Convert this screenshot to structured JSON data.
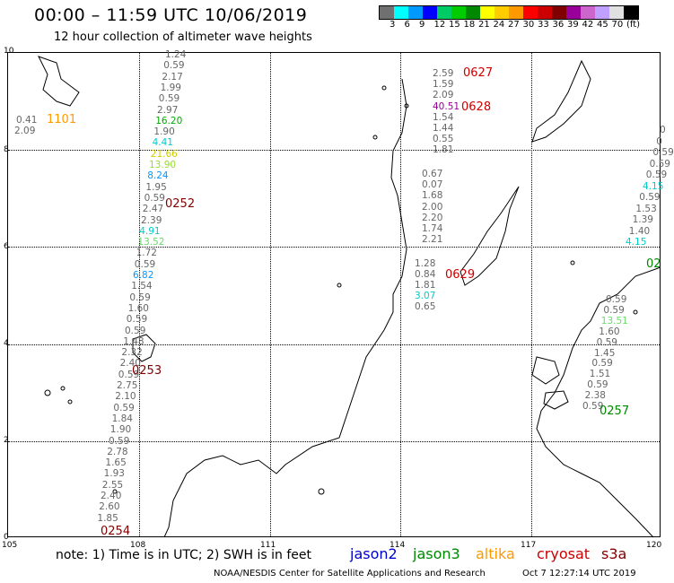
{
  "title": "00:00 – 11:59 UTC 10/06/2019",
  "subtitle": "12 hour collection of altimeter wave heights",
  "color_scale": {
    "colors": [
      "#707070",
      "#00ffff",
      "#0099ff",
      "#0000ff",
      "#00cc66",
      "#00cc00",
      "#008800",
      "#ffff00",
      "#ffcc00",
      "#ff9900",
      "#ff0000",
      "#cc0000",
      "#800000",
      "#990099",
      "#cc66cc",
      "#c0a0ff",
      "#e0e0e0",
      "#000000"
    ],
    "labels": [
      "3",
      "6",
      "9",
      "12",
      "15",
      "18",
      "21",
      "24",
      "27",
      "30",
      "33",
      "36",
      "39",
      "42",
      "45",
      "70"
    ],
    "unit": "(ft)"
  },
  "axes": {
    "y_ticks": [
      "10",
      "8",
      "6",
      "4",
      "2",
      "0"
    ],
    "x_ticks": [
      "105",
      "108",
      "111",
      "114",
      "117",
      "120"
    ]
  },
  "notes": {
    "text": "note: 1) Time is in UTC; 2) SWH is in feet",
    "legend": [
      {
        "name": "jason2",
        "color": "#0000cc"
      },
      {
        "name": "jason3",
        "color": "#008800"
      },
      {
        "name": "altika",
        "color": "#ff9900"
      },
      {
        "name": "cryosat",
        "color": "#cc0000"
      },
      {
        "name": "s3a",
        "color": "#800000"
      }
    ],
    "credit": "NOAA/NESDIS Center for Satellite Applications and Research",
    "generated": "Oct  7 12:27:14 UTC 2019"
  },
  "passes": [
    {
      "time": "1101",
      "color": "#ff9900"
    },
    {
      "time": "0252",
      "color": "#800000"
    },
    {
      "time": "0253",
      "color": "#800000"
    },
    {
      "time": "0254",
      "color": "#800000"
    },
    {
      "time": "0627",
      "color": "#cc0000"
    },
    {
      "time": "0628",
      "color": "#cc0000"
    },
    {
      "time": "0629",
      "color": "#cc0000"
    },
    {
      "time": "0257",
      "color": "#008800"
    },
    {
      "time": "02",
      "color": "#008800"
    }
  ],
  "tracks": {
    "left_far": [
      {
        "v": "0.41",
        "c": "#666666"
      },
      {
        "v": "2.09",
        "c": "#666666"
      }
    ],
    "track_108": [
      {
        "v": "1.24",
        "c": "#666666"
      },
      {
        "v": "0.59",
        "c": "#666666"
      },
      {
        "v": "2.17",
        "c": "#666666"
      },
      {
        "v": "1.99",
        "c": "#666666"
      },
      {
        "v": "0.59",
        "c": "#666666"
      },
      {
        "v": "2.97",
        "c": "#666666"
      },
      {
        "v": "16.20",
        "c": "#00aa00"
      },
      {
        "v": "1.90",
        "c": "#666666"
      },
      {
        "v": "4.41",
        "c": "#00cccc"
      },
      {
        "v": "21.66",
        "c": "#cccc00"
      },
      {
        "v": "13.90",
        "c": "#99dd33"
      },
      {
        "v": "8.24",
        "c": "#0099ff"
      },
      {
        "v": "1.95",
        "c": "#666666"
      },
      {
        "v": "0.59",
        "c": "#666666"
      },
      {
        "v": "2.47",
        "c": "#666666"
      },
      {
        "v": "2.39",
        "c": "#666666"
      },
      {
        "v": "4.91",
        "c": "#00cccc"
      },
      {
        "v": "13.52",
        "c": "#66dd66"
      },
      {
        "v": "1.72",
        "c": "#666666"
      },
      {
        "v": "0.59",
        "c": "#666666"
      },
      {
        "v": "6.82",
        "c": "#0099ff"
      },
      {
        "v": "1.54",
        "c": "#666666"
      },
      {
        "v": "0.59",
        "c": "#666666"
      },
      {
        "v": "1.60",
        "c": "#666666"
      },
      {
        "v": "0.59",
        "c": "#666666"
      },
      {
        "v": "0.59",
        "c": "#666666"
      },
      {
        "v": "1.48",
        "c": "#666666"
      },
      {
        "v": "2.32",
        "c": "#666666"
      },
      {
        "v": "2.40",
        "c": "#666666"
      },
      {
        "v": "0.59",
        "c": "#666666"
      },
      {
        "v": "2.75",
        "c": "#666666"
      },
      {
        "v": "2.10",
        "c": "#666666"
      },
      {
        "v": "0.59",
        "c": "#666666"
      },
      {
        "v": "1.84",
        "c": "#666666"
      },
      {
        "v": "1.90",
        "c": "#666666"
      },
      {
        "v": "0.59",
        "c": "#666666"
      },
      {
        "v": "2.78",
        "c": "#666666"
      },
      {
        "v": "1.65",
        "c": "#666666"
      },
      {
        "v": "1.93",
        "c": "#666666"
      },
      {
        "v": "2.55",
        "c": "#666666"
      },
      {
        "v": "2.40",
        "c": "#666666"
      },
      {
        "v": "2.60",
        "c": "#666666"
      },
      {
        "v": "1.85",
        "c": "#666666"
      }
    ],
    "track_114a": [
      {
        "v": "2.59",
        "c": "#666666"
      },
      {
        "v": "1.59",
        "c": "#666666"
      },
      {
        "v": "2.09",
        "c": "#666666"
      },
      {
        "v": "40.51",
        "c": "#990099"
      },
      {
        "v": "1.54",
        "c": "#666666"
      },
      {
        "v": "1.44",
        "c": "#666666"
      },
      {
        "v": "0.55",
        "c": "#666666"
      },
      {
        "v": "1.81",
        "c": "#666666"
      }
    ],
    "track_114b": [
      {
        "v": "0.67",
        "c": "#666666"
      },
      {
        "v": "0.07",
        "c": "#666666"
      },
      {
        "v": "1.68",
        "c": "#666666"
      },
      {
        "v": "2.00",
        "c": "#666666"
      },
      {
        "v": "2.20",
        "c": "#666666"
      },
      {
        "v": "1.74",
        "c": "#666666"
      },
      {
        "v": "2.21",
        "c": "#666666"
      }
    ],
    "track_114c": [
      {
        "v": "1.28",
        "c": "#666666"
      },
      {
        "v": "0.84",
        "c": "#666666"
      },
      {
        "v": "1.81",
        "c": "#666666"
      },
      {
        "v": "3.07",
        "c": "#00cccc"
      },
      {
        "v": "0.65",
        "c": "#666666"
      }
    ],
    "track_119": [
      {
        "v": "0.59",
        "c": "#666666"
      },
      {
        "v": "0.59",
        "c": "#666666"
      },
      {
        "v": "13.51",
        "c": "#66dd66"
      },
      {
        "v": "1.60",
        "c": "#666666"
      },
      {
        "v": "0.59",
        "c": "#666666"
      },
      {
        "v": "1.45",
        "c": "#666666"
      },
      {
        "v": "0.59",
        "c": "#666666"
      },
      {
        "v": "1.51",
        "c": "#666666"
      },
      {
        "v": "0.59",
        "c": "#666666"
      },
      {
        "v": "2.38",
        "c": "#666666"
      },
      {
        "v": "0.59",
        "c": "#666666"
      }
    ],
    "track_right": [
      {
        "v": "0",
        "c": "#666666"
      },
      {
        "v": "0",
        "c": "#666666"
      },
      {
        "v": "0.59",
        "c": "#666666"
      },
      {
        "v": "0.59",
        "c": "#666666"
      },
      {
        "v": "0.59",
        "c": "#666666"
      },
      {
        "v": "4.15",
        "c": "#00cccc"
      },
      {
        "v": "0.59",
        "c": "#666666"
      },
      {
        "v": "1.53",
        "c": "#666666"
      },
      {
        "v": "1.39",
        "c": "#666666"
      },
      {
        "v": "1.40",
        "c": "#666666"
      },
      {
        "v": "4.15",
        "c": "#00cccc"
      }
    ]
  }
}
